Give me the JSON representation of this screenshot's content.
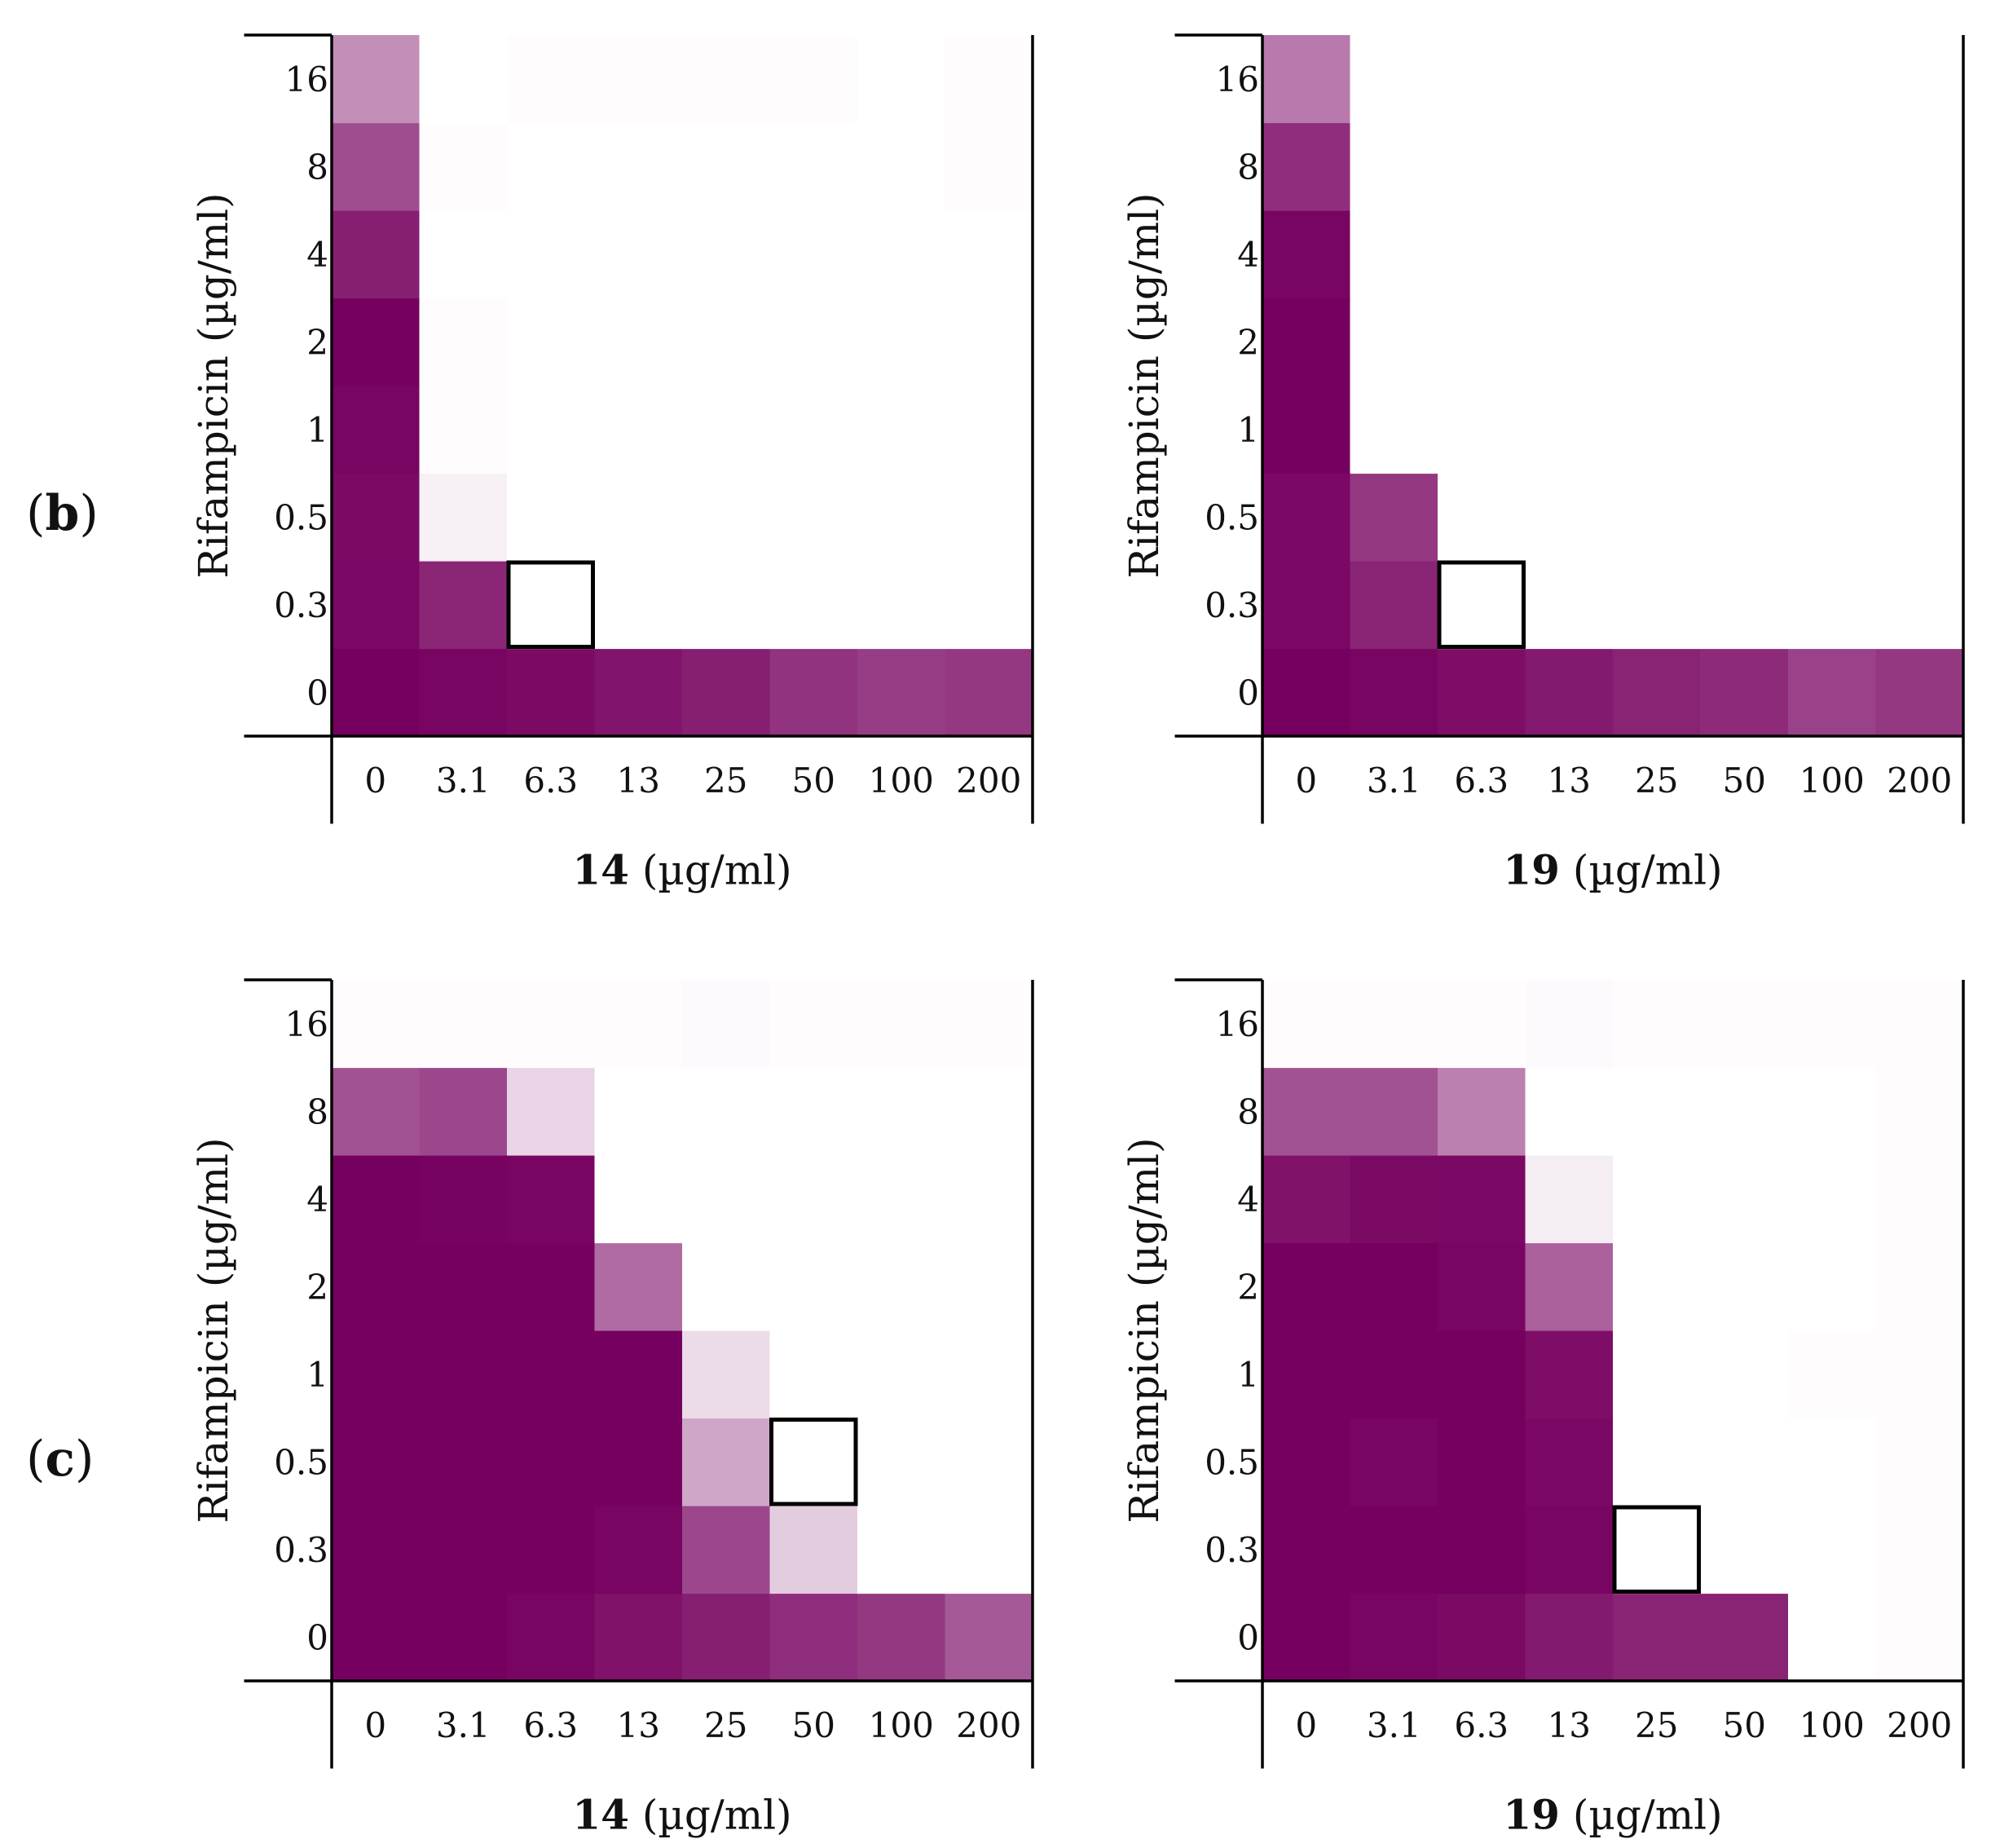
{
  "panel_labels": {
    "b_text": "b",
    "c_text": "c"
  },
  "colors": {
    "high": "#76005F",
    "low": "#FFFFFF",
    "axis": "#000000"
  },
  "chart_data": [
    {
      "type": "heatmap",
      "panel": "b",
      "xlabel_bold": "14",
      "xlabel_rest": " (µg/ml)",
      "ylabel": "Rifampicin (µg/ml)",
      "x_ticks": [
        "0",
        "3.1",
        "6.3",
        "13",
        "25",
        "50",
        "100",
        "200"
      ],
      "y_ticks": [
        "0",
        "0.3",
        "0.5",
        "1",
        "2",
        "4",
        "8",
        "16"
      ],
      "highlight": {
        "x": "6.3",
        "y": "0.3"
      },
      "values": [
        [
          1.0,
          0.98,
          0.96,
          0.92,
          0.88,
          0.8,
          0.76,
          0.78
        ],
        [
          0.97,
          0.85,
          0.0,
          0.0,
          0.0,
          0.0,
          0.0,
          0.0
        ],
        [
          0.96,
          0.06,
          0.0,
          0.0,
          0.0,
          0.0,
          0.0,
          0.0
        ],
        [
          0.98,
          0.01,
          0.0,
          0.0,
          0.0,
          0.0,
          0.0,
          0.0
        ],
        [
          1.0,
          0.01,
          0.0,
          0.0,
          0.0,
          0.0,
          0.0,
          0.0
        ],
        [
          0.88,
          0.0,
          0.0,
          0.0,
          0.0,
          0.0,
          0.0,
          0.0
        ],
        [
          0.7,
          0.01,
          0.0,
          0.0,
          0.0,
          0.0,
          0.0,
          0.01
        ],
        [
          0.44,
          0.0,
          0.01,
          0.01,
          0.01,
          0.01,
          0.0,
          0.01
        ]
      ]
    },
    {
      "type": "heatmap",
      "panel": "b",
      "xlabel_bold": "19",
      "xlabel_rest": " (µg/ml)",
      "ylabel": "Rifampicin (µg/ml)",
      "x_ticks": [
        "0",
        "3.1",
        "6.3",
        "13",
        "25",
        "50",
        "100",
        "200"
      ],
      "y_ticks": [
        "0",
        "0.3",
        "0.5",
        "1",
        "2",
        "4",
        "8",
        "16"
      ],
      "highlight": {
        "x": "6.3",
        "y": "0.3"
      },
      "values": [
        [
          1.0,
          0.98,
          0.95,
          0.9,
          0.86,
          0.83,
          0.74,
          0.78
        ],
        [
          0.97,
          0.86,
          0.0,
          0.0,
          0.0,
          0.0,
          0.0,
          0.0
        ],
        [
          0.97,
          0.78,
          0.0,
          0.0,
          0.0,
          0.0,
          0.0,
          0.0
        ],
        [
          1.0,
          0.0,
          0.0,
          0.0,
          0.0,
          0.0,
          0.0,
          0.0
        ],
        [
          1.0,
          0.0,
          0.0,
          0.0,
          0.0,
          0.0,
          0.0,
          0.0
        ],
        [
          0.98,
          0.0,
          0.0,
          0.0,
          0.0,
          0.0,
          0.0,
          0.0
        ],
        [
          0.82,
          0.0,
          0.0,
          0.0,
          0.0,
          0.0,
          0.0,
          0.0
        ],
        [
          0.52,
          0.0,
          0.0,
          0.0,
          0.0,
          0.0,
          0.0,
          0.0
        ]
      ]
    },
    {
      "type": "heatmap",
      "panel": "c",
      "xlabel_bold": "14",
      "xlabel_rest": " (µg/ml)",
      "ylabel": "Rifampicin (µg/ml)",
      "x_ticks": [
        "0",
        "3.1",
        "6.3",
        "13",
        "25",
        "50",
        "100",
        "200"
      ],
      "y_ticks": [
        "0",
        "0.3",
        "0.5",
        "1",
        "2",
        "4",
        "8",
        "16"
      ],
      "highlight": {
        "x": "50",
        "y": "0.5"
      },
      "values": [
        [
          1.0,
          1.0,
          0.98,
          0.93,
          0.88,
          0.82,
          0.78,
          0.65
        ],
        [
          1.0,
          1.0,
          1.0,
          0.98,
          0.72,
          0.2,
          0.0,
          0.0
        ],
        [
          1.0,
          1.0,
          1.0,
          1.0,
          0.35,
          0.0,
          0.0,
          0.0
        ],
        [
          1.0,
          1.0,
          1.0,
          1.0,
          0.14,
          0.0,
          0.0,
          0.0
        ],
        [
          1.0,
          1.0,
          1.0,
          0.58,
          0.0,
          0.0,
          0.0,
          0.0
        ],
        [
          1.0,
          0.99,
          0.98,
          0.0,
          0.0,
          0.0,
          0.0,
          0.0
        ],
        [
          0.68,
          0.72,
          0.17,
          0.0,
          0.0,
          0.0,
          0.0,
          0.0
        ],
        [
          0.01,
          0.01,
          0.01,
          0.01,
          0.02,
          0.01,
          0.01,
          0.01
        ]
      ]
    },
    {
      "type": "heatmap",
      "panel": "c",
      "xlabel_bold": "19",
      "xlabel_rest": " (µg/ml)",
      "ylabel": "Rifampicin (µg/ml)",
      "x_ticks": [
        "0",
        "3.1",
        "6.3",
        "13",
        "25",
        "50",
        "100",
        "200"
      ],
      "y_ticks": [
        "0",
        "0.3",
        "0.5",
        "1",
        "2",
        "4",
        "8",
        "16"
      ],
      "highlight": {
        "x": "25",
        "y": "0.3"
      },
      "values": [
        [
          1.0,
          0.98,
          0.96,
          0.9,
          0.86,
          0.86,
          0.0,
          0.01
        ],
        [
          1.0,
          1.0,
          1.0,
          0.98,
          0.0,
          0.0,
          0.0,
          0.01
        ],
        [
          1.0,
          0.98,
          1.0,
          0.97,
          0.0,
          0.0,
          0.0,
          0.01
        ],
        [
          1.0,
          1.0,
          1.0,
          0.95,
          0.0,
          0.0,
          0.01,
          0.01
        ],
        [
          1.0,
          1.0,
          0.98,
          0.62,
          0.0,
          0.0,
          0.0,
          0.01
        ],
        [
          0.93,
          0.96,
          0.97,
          0.07,
          0.0,
          0.0,
          0.0,
          0.01
        ],
        [
          0.68,
          0.68,
          0.5,
          0.0,
          0.0,
          0.0,
          0.0,
          0.01
        ],
        [
          0.01,
          0.01,
          0.01,
          0.02,
          0.01,
          0.01,
          0.01,
          0.01
        ]
      ]
    }
  ]
}
